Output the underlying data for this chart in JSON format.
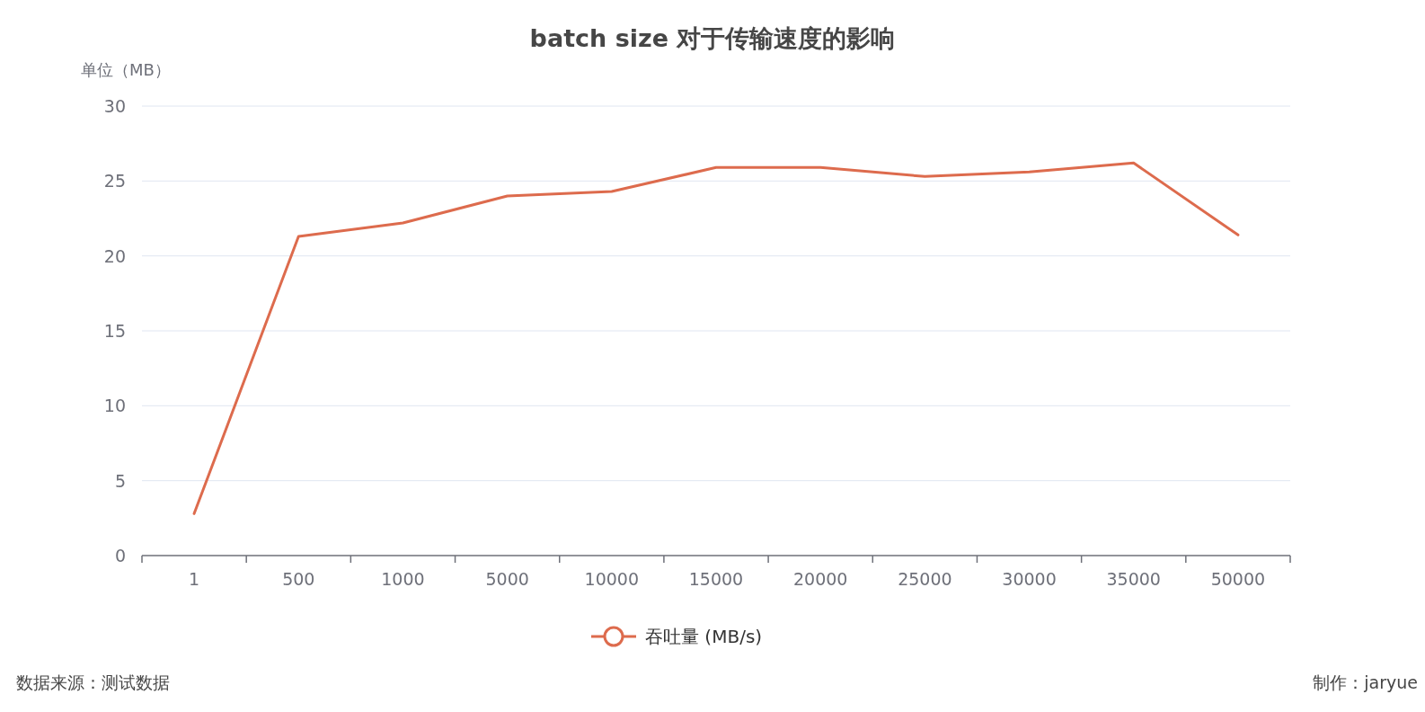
{
  "chart_data": {
    "type": "line",
    "title": "batch size 对于传输速度的影响",
    "ylabel": "单位（MB）",
    "categories": [
      "1",
      "500",
      "1000",
      "5000",
      "10000",
      "15000",
      "20000",
      "25000",
      "30000",
      "35000",
      "50000"
    ],
    "series": [
      {
        "name": "吞吐量 (MB/s)",
        "color": "#dd6b4d",
        "values": [
          2.8,
          21.3,
          22.2,
          24.0,
          24.3,
          25.9,
          25.9,
          25.3,
          25.6,
          26.2,
          21.4
        ]
      }
    ],
    "ylim": [
      0,
      30
    ],
    "yticks": [
      0,
      5,
      10,
      15,
      20,
      25,
      30
    ],
    "grid": "y",
    "legend": "bottom",
    "marker": "none",
    "line_style": "solid",
    "annotations": [
      "数据来源：测试数据",
      "制作：jaryue"
    ]
  }
}
